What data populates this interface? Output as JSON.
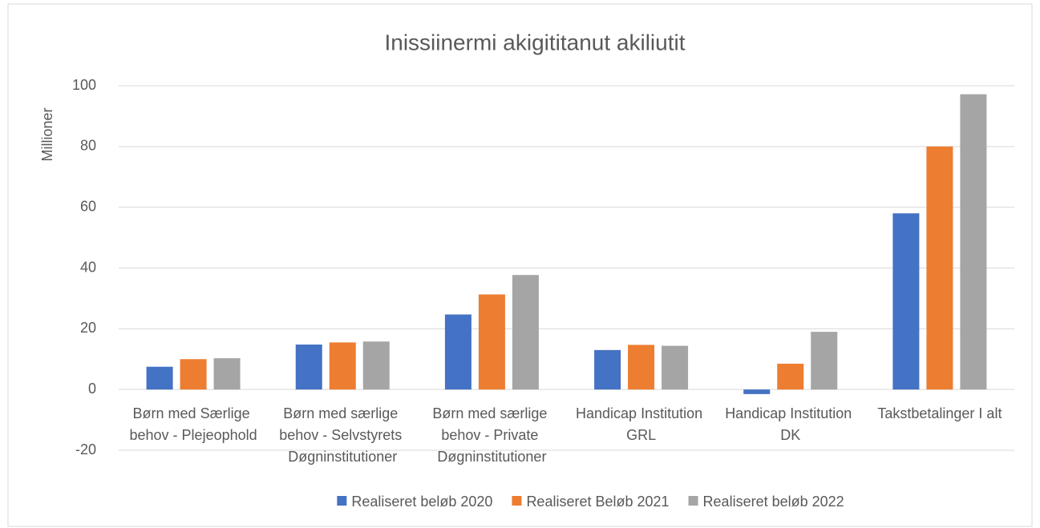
{
  "chart_data": {
    "type": "bar",
    "title": "Inissiinermi akigititanut akiliutit",
    "y_label": "Millioner",
    "categories": [
      "Børn med Særlige behov - Plejeophold",
      "Børn med særlige behov - Selvstyrets Døgninstitutioner",
      "Børn med særlige behov - Private Døgninstitutioner",
      "Handicap Institution GRL",
      "Handicap Institution DK",
      "Takstbetalinger I alt"
    ],
    "series": [
      {
        "name": "Realiseret beløb 2020",
        "color": "#4472c4",
        "values": [
          7.5,
          14.8,
          24.7,
          13,
          -1.5,
          58
        ]
      },
      {
        "name": "Realiseret Beløb 2021",
        "color": "#ed7d31",
        "values": [
          10,
          15.5,
          31.3,
          14.7,
          8.5,
          80
        ]
      },
      {
        "name": "Realiseret beløb 2022",
        "color": "#a5a5a5",
        "values": [
          10.3,
          15.8,
          37.7,
          14.4,
          19,
          97.2
        ]
      }
    ],
    "ylim": [
      -20,
      100
    ],
    "yticks": [
      -20,
      0,
      20,
      40,
      60,
      80,
      100
    ],
    "grid": true,
    "legend": "bottom"
  }
}
